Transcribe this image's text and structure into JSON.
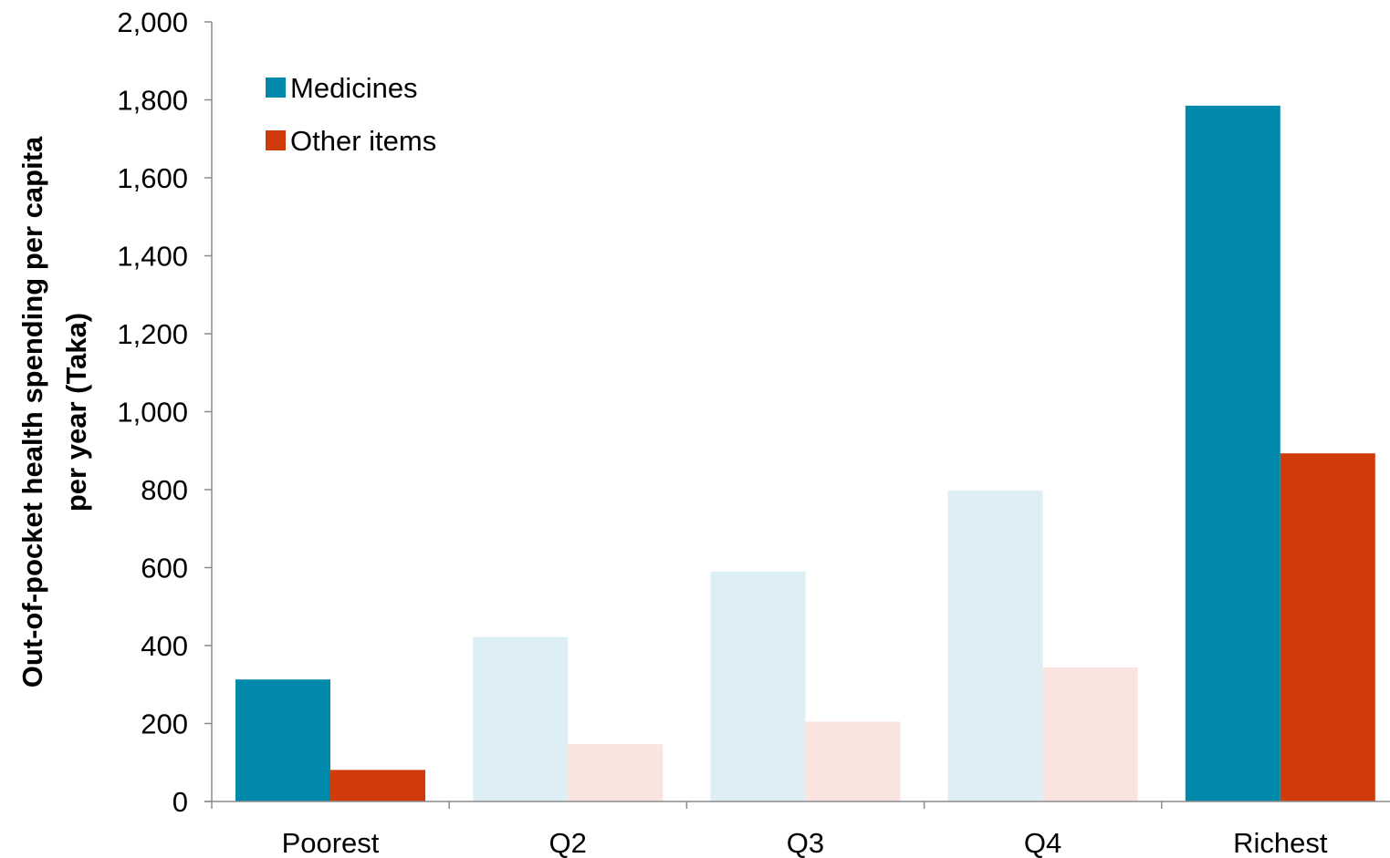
{
  "chart_data": {
    "type": "bar",
    "title": "",
    "xlabel": "",
    "ylabel_lines": [
      "Out-of-pocket health spending per capita",
      "per year (Taka)"
    ],
    "categories": [
      "Poorest",
      "Q2",
      "Q3",
      "Q4",
      "Richest"
    ],
    "ylim": [
      0,
      2000
    ],
    "ytick_values": [
      0,
      200,
      400,
      600,
      800,
      1000,
      1200,
      1400,
      1600,
      1800,
      2000
    ],
    "ytick_labels": [
      "0",
      "200",
      "400",
      "600",
      "800",
      "1,000",
      "1,200",
      "1,400",
      "1,600",
      "1,800",
      "2,000"
    ],
    "grid": false,
    "legend_position": "top-left",
    "highlighted_categories": [
      "Poorest",
      "Richest"
    ],
    "series": [
      {
        "name": "Medicines",
        "color": "#0089ab",
        "faded_color": "#ddeff4",
        "values": [
          313,
          422,
          590,
          798,
          1785
        ]
      },
      {
        "name": "Other items",
        "color": "#d03b0b",
        "faded_color": "#f9e4e0",
        "values": [
          81,
          147,
          205,
          344,
          893
        ]
      }
    ]
  }
}
